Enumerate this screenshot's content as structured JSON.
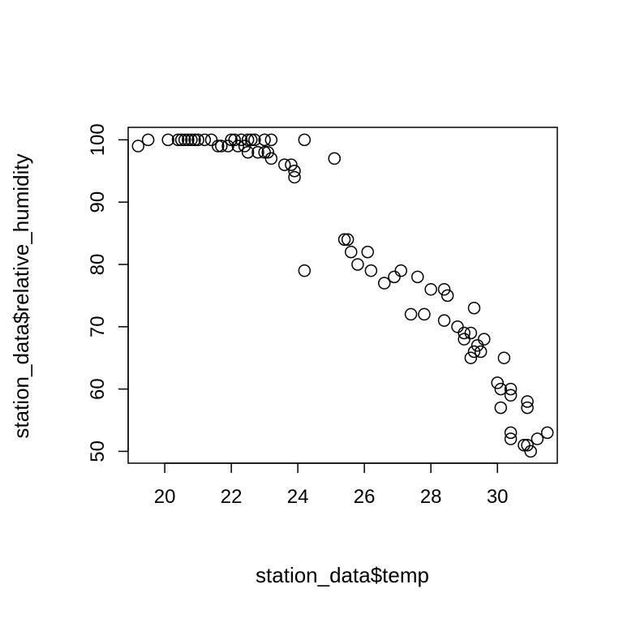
{
  "chart_data": {
    "type": "scatter",
    "title": "",
    "xlabel": "station_data$temp",
    "ylabel": "station_data$relative_humidity",
    "xlim": [
      18.9,
      31.8
    ],
    "ylim": [
      48.1,
      102.0
    ],
    "xticks": [
      20,
      22,
      24,
      26,
      28,
      30
    ],
    "yticks": [
      50,
      60,
      70,
      80,
      90,
      100
    ],
    "xtick_labels": [
      "20",
      "22",
      "24",
      "26",
      "28",
      "30"
    ],
    "ytick_labels": [
      "50",
      "60",
      "70",
      "80",
      "90",
      "100"
    ],
    "grid": false,
    "legend": "none",
    "marker": "open-circle",
    "color": "#000000",
    "points": [
      {
        "x": 19.2,
        "y": 99
      },
      {
        "x": 19.5,
        "y": 100
      },
      {
        "x": 20.1,
        "y": 100
      },
      {
        "x": 20.4,
        "y": 100
      },
      {
        "x": 20.5,
        "y": 100
      },
      {
        "x": 20.6,
        "y": 100
      },
      {
        "x": 20.7,
        "y": 100
      },
      {
        "x": 20.8,
        "y": 100
      },
      {
        "x": 20.9,
        "y": 100
      },
      {
        "x": 21.0,
        "y": 100
      },
      {
        "x": 21.2,
        "y": 100
      },
      {
        "x": 21.4,
        "y": 100
      },
      {
        "x": 21.6,
        "y": 99
      },
      {
        "x": 21.7,
        "y": 99
      },
      {
        "x": 21.9,
        "y": 99
      },
      {
        "x": 22.0,
        "y": 100
      },
      {
        "x": 22.1,
        "y": 100
      },
      {
        "x": 22.2,
        "y": 99
      },
      {
        "x": 22.3,
        "y": 100
      },
      {
        "x": 22.4,
        "y": 99
      },
      {
        "x": 22.5,
        "y": 98
      },
      {
        "x": 22.5,
        "y": 100
      },
      {
        "x": 22.6,
        "y": 100
      },
      {
        "x": 22.7,
        "y": 100
      },
      {
        "x": 22.8,
        "y": 98
      },
      {
        "x": 23.0,
        "y": 100
      },
      {
        "x": 23.0,
        "y": 98
      },
      {
        "x": 23.1,
        "y": 98
      },
      {
        "x": 23.2,
        "y": 97
      },
      {
        "x": 23.2,
        "y": 100
      },
      {
        "x": 23.6,
        "y": 96
      },
      {
        "x": 23.8,
        "y": 96
      },
      {
        "x": 23.9,
        "y": 95
      },
      {
        "x": 23.9,
        "y": 94
      },
      {
        "x": 24.2,
        "y": 100
      },
      {
        "x": 24.2,
        "y": 79
      },
      {
        "x": 25.1,
        "y": 97
      },
      {
        "x": 25.4,
        "y": 84
      },
      {
        "x": 25.5,
        "y": 84
      },
      {
        "x": 25.6,
        "y": 82
      },
      {
        "x": 25.8,
        "y": 80
      },
      {
        "x": 26.1,
        "y": 82
      },
      {
        "x": 26.2,
        "y": 79
      },
      {
        "x": 26.6,
        "y": 77
      },
      {
        "x": 26.9,
        "y": 78
      },
      {
        "x": 27.1,
        "y": 79
      },
      {
        "x": 27.4,
        "y": 72
      },
      {
        "x": 27.6,
        "y": 78
      },
      {
        "x": 27.8,
        "y": 72
      },
      {
        "x": 28.0,
        "y": 76
      },
      {
        "x": 28.4,
        "y": 76
      },
      {
        "x": 28.4,
        "y": 71
      },
      {
        "x": 28.5,
        "y": 75
      },
      {
        "x": 28.8,
        "y": 70
      },
      {
        "x": 29.0,
        "y": 69
      },
      {
        "x": 29.0,
        "y": 68
      },
      {
        "x": 29.2,
        "y": 69
      },
      {
        "x": 29.2,
        "y": 65
      },
      {
        "x": 29.3,
        "y": 73
      },
      {
        "x": 29.3,
        "y": 66
      },
      {
        "x": 29.4,
        "y": 67
      },
      {
        "x": 29.5,
        "y": 66
      },
      {
        "x": 29.6,
        "y": 68
      },
      {
        "x": 30.0,
        "y": 61
      },
      {
        "x": 30.1,
        "y": 60
      },
      {
        "x": 30.1,
        "y": 57
      },
      {
        "x": 30.2,
        "y": 65
      },
      {
        "x": 30.4,
        "y": 60
      },
      {
        "x": 30.4,
        "y": 59
      },
      {
        "x": 30.4,
        "y": 53
      },
      {
        "x": 30.4,
        "y": 52
      },
      {
        "x": 30.8,
        "y": 51
      },
      {
        "x": 30.9,
        "y": 51
      },
      {
        "x": 30.9,
        "y": 58
      },
      {
        "x": 30.9,
        "y": 57
      },
      {
        "x": 31.0,
        "y": 50
      },
      {
        "x": 31.2,
        "y": 52
      },
      {
        "x": 31.5,
        "y": 53
      }
    ]
  }
}
